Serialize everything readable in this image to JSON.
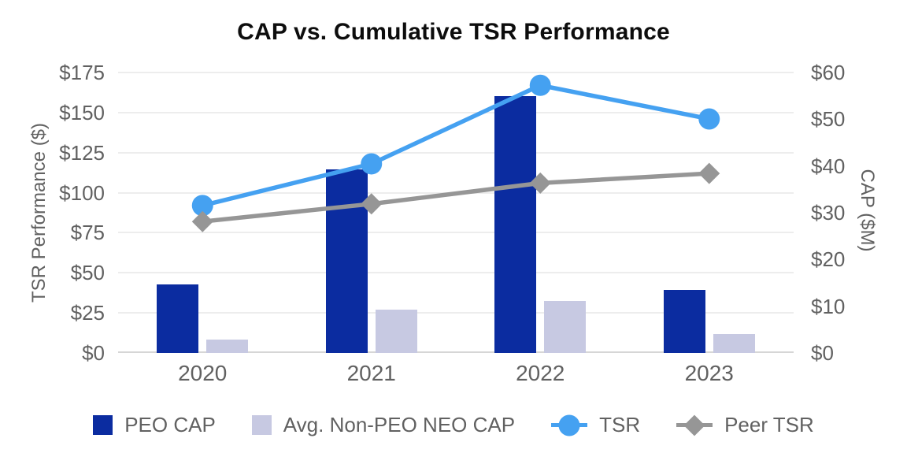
{
  "chart_data": {
    "type": "combo-bar-line",
    "title": "CAP vs. Cumulative TSR Performance",
    "categories": [
      "2020",
      "2021",
      "2022",
      "2023"
    ],
    "bar_series": [
      {
        "name": "PEO CAP",
        "axis": "right",
        "color": "#0B2CA0",
        "values": [
          14.6,
          39.2,
          55.0,
          13.5
        ]
      },
      {
        "name": "Avg. Non-PEO NEO CAP",
        "axis": "right",
        "color": "#C7C9E2",
        "values": [
          2.8,
          9.2,
          11.1,
          4.1
        ]
      }
    ],
    "line_series": [
      {
        "name": "TSR",
        "axis": "left",
        "color": "#45A1F1",
        "marker": "circle",
        "values": [
          92,
          118,
          167,
          146
        ]
      },
      {
        "name": "Peer TSR",
        "axis": "left",
        "color": "#969696",
        "marker": "diamond",
        "values": [
          82,
          93,
          106,
          112
        ]
      }
    ],
    "left_axis": {
      "label": "TSR Performance ($)",
      "tick_prefix": "$",
      "ticks": [
        0,
        25,
        50,
        75,
        100,
        125,
        150,
        175
      ],
      "max": 175
    },
    "right_axis": {
      "label": "CAP ($M)",
      "tick_prefix": "$",
      "ticks": [
        0,
        10,
        20,
        30,
        40,
        50,
        60
      ],
      "max": 60
    },
    "legend": [
      "PEO CAP",
      "Avg. Non-PEO NEO CAP",
      "TSR",
      "Peer TSR"
    ],
    "legend_position": "bottom",
    "grid": true,
    "palette": {
      "title_text": "#0d0d0d",
      "axis_text": "#616161",
      "gridline": "#ededed",
      "baseline": "#d6d6d6",
      "background": "#ffffff"
    }
  }
}
